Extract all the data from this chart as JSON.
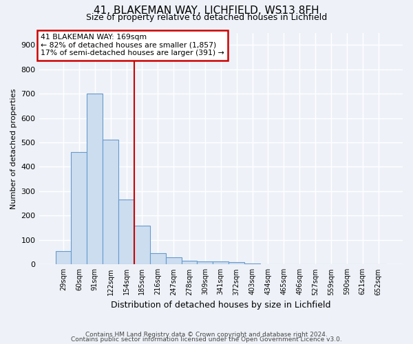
{
  "title": "41, BLAKEMAN WAY, LICHFIELD, WS13 8FH",
  "subtitle": "Size of property relative to detached houses in Lichfield",
  "xlabel": "Distribution of detached houses by size in Lichfield",
  "ylabel": "Number of detached properties",
  "footer1": "Contains HM Land Registry data © Crown copyright and database right 2024.",
  "footer2": "Contains public sector information licensed under the Open Government Licence v3.0.",
  "categories": [
    "29sqm",
    "60sqm",
    "91sqm",
    "122sqm",
    "154sqm",
    "185sqm",
    "216sqm",
    "247sqm",
    "278sqm",
    "309sqm",
    "341sqm",
    "372sqm",
    "403sqm",
    "434sqm",
    "465sqm",
    "496sqm",
    "527sqm",
    "559sqm",
    "590sqm",
    "621sqm",
    "652sqm"
  ],
  "values": [
    55,
    460,
    700,
    510,
    265,
    160,
    45,
    30,
    15,
    13,
    13,
    8,
    5,
    0,
    0,
    0,
    0,
    0,
    0,
    0,
    0
  ],
  "bar_color": "#ccddf0",
  "bar_edge_color": "#6699cc",
  "property_line_x": 4.5,
  "annotation_text1": "41 BLAKEMAN WAY: 169sqm",
  "annotation_text2": "← 82% of detached houses are smaller (1,857)",
  "annotation_text3": "17% of semi-detached houses are larger (391) →",
  "annotation_box_color": "white",
  "annotation_box_edge": "#cc0000",
  "line_color": "#cc0000",
  "ylim": [
    0,
    950
  ],
  "yticks": [
    0,
    100,
    200,
    300,
    400,
    500,
    600,
    700,
    800,
    900
  ],
  "background_color": "#eef2f8",
  "grid_color": "white",
  "title_fontsize": 11,
  "subtitle_fontsize": 9,
  "ylabel_fontsize": 8,
  "xlabel_fontsize": 9
}
